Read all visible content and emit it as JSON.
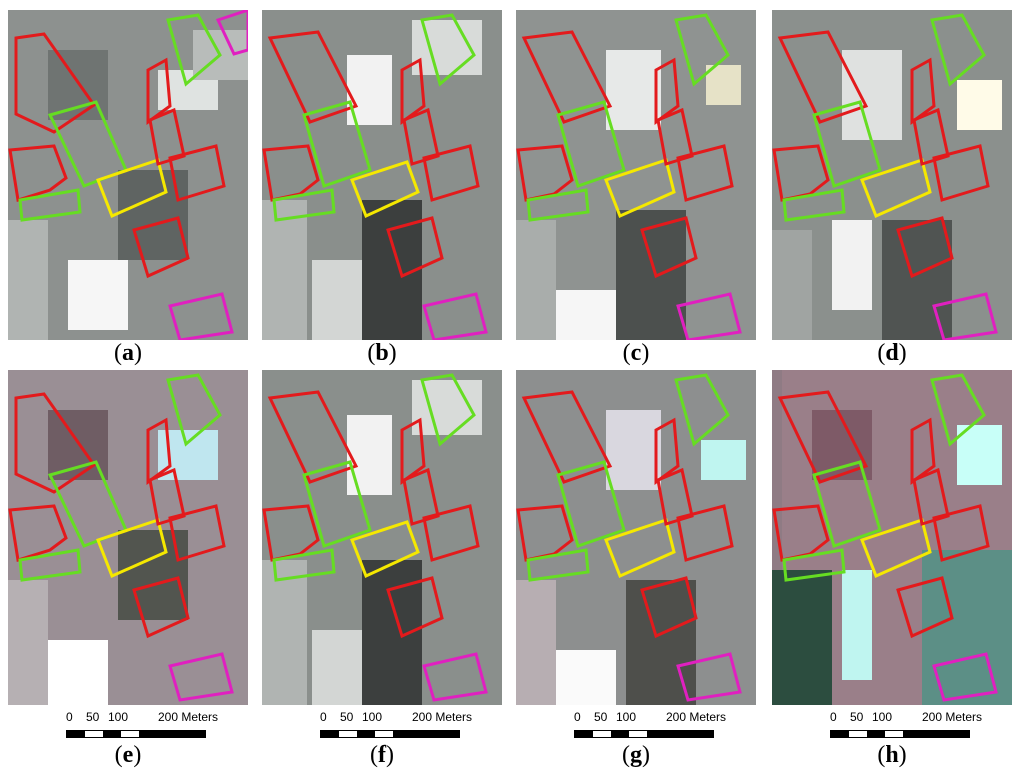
{
  "panels": [
    {
      "id": "a",
      "label": "a",
      "style": "highres-gray"
    },
    {
      "id": "b",
      "label": "b",
      "style": "coarse-gray"
    },
    {
      "id": "c",
      "label": "c",
      "style": "medium-gray"
    },
    {
      "id": "d",
      "label": "d",
      "style": "medium-gray-2"
    },
    {
      "id": "e",
      "label": "e",
      "style": "highres-color"
    },
    {
      "id": "f",
      "label": "f",
      "style": "coarse-gray"
    },
    {
      "id": "g",
      "label": "g",
      "style": "medium-color"
    },
    {
      "id": "h",
      "label": "h",
      "style": "medium-color-2"
    }
  ],
  "scale": {
    "ticks": [
      "0",
      "50",
      "100",
      "200 Meters"
    ]
  },
  "colors": {
    "red": "#e31a1c",
    "green": "#66dd22",
    "yellow": "#f5e800",
    "magenta": "#e020c0"
  }
}
